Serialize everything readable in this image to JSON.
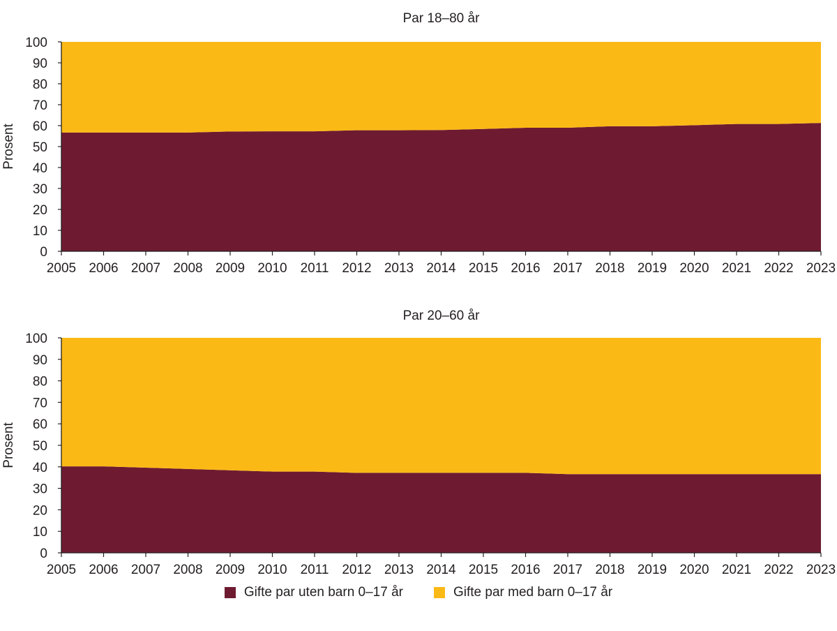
{
  "colors": {
    "series_a": "#6e1b31",
    "series_b": "#fbb916",
    "axis": "#231f20"
  },
  "chart_data": [
    {
      "type": "area",
      "stacked": true,
      "title": "Par 18–80 år",
      "xlabel": "",
      "ylabel": "Prosent",
      "ylim": [
        0,
        100
      ],
      "yticks": [
        0,
        10,
        20,
        30,
        40,
        50,
        60,
        70,
        80,
        90,
        100
      ],
      "grid": false,
      "x": [
        2005,
        2006,
        2007,
        2008,
        2009,
        2010,
        2011,
        2012,
        2013,
        2014,
        2015,
        2016,
        2017,
        2018,
        2019,
        2020,
        2021,
        2022,
        2023
      ],
      "series": [
        {
          "name": "Gifte par uten barn 0–17 år",
          "color": "#6e1b31",
          "values": [
            56.7,
            56.7,
            56.7,
            56.7,
            57.2,
            57.3,
            57.3,
            57.8,
            57.8,
            57.9,
            58.4,
            59.0,
            59.0,
            59.7,
            59.7,
            60.2,
            60.8,
            60.8,
            61.3
          ]
        },
        {
          "name": "Gifte par med barn 0–17 år",
          "color": "#fbb916",
          "values": [
            43.3,
            43.3,
            43.3,
            43.3,
            42.8,
            42.7,
            42.7,
            42.2,
            42.2,
            42.1,
            41.6,
            41.0,
            41.0,
            40.3,
            40.3,
            39.8,
            39.2,
            39.2,
            38.7
          ]
        }
      ]
    },
    {
      "type": "area",
      "stacked": true,
      "title": "Par 20–60 år",
      "xlabel": "",
      "ylabel": "Prosent",
      "ylim": [
        0,
        100
      ],
      "yticks": [
        0,
        10,
        20,
        30,
        40,
        50,
        60,
        70,
        80,
        90,
        100
      ],
      "grid": false,
      "x": [
        2005,
        2006,
        2007,
        2008,
        2009,
        2010,
        2011,
        2012,
        2013,
        2014,
        2015,
        2016,
        2017,
        2018,
        2019,
        2020,
        2021,
        2022,
        2023
      ],
      "series": [
        {
          "name": "Gifte par uten barn 0–17 år",
          "color": "#6e1b31",
          "values": [
            40.2,
            40.2,
            39.6,
            39.0,
            38.4,
            37.8,
            37.8,
            37.2,
            37.2,
            37.2,
            37.2,
            37.2,
            36.6,
            36.6,
            36.6,
            36.6,
            36.6,
            36.6,
            36.6
          ]
        },
        {
          "name": "Gifte par med barn 0–17 år",
          "color": "#fbb916",
          "values": [
            59.8,
            59.8,
            60.4,
            61.0,
            61.6,
            62.2,
            62.2,
            62.8,
            62.8,
            62.8,
            62.8,
            62.8,
            63.4,
            63.4,
            63.4,
            63.4,
            63.4,
            63.4,
            63.4
          ]
        }
      ]
    }
  ],
  "legend": {
    "items": [
      {
        "label": "Gifte par uten barn 0–17 år",
        "color": "#6e1b31"
      },
      {
        "label": "Gifte par med barn 0–17 år",
        "color": "#fbb916"
      }
    ]
  }
}
